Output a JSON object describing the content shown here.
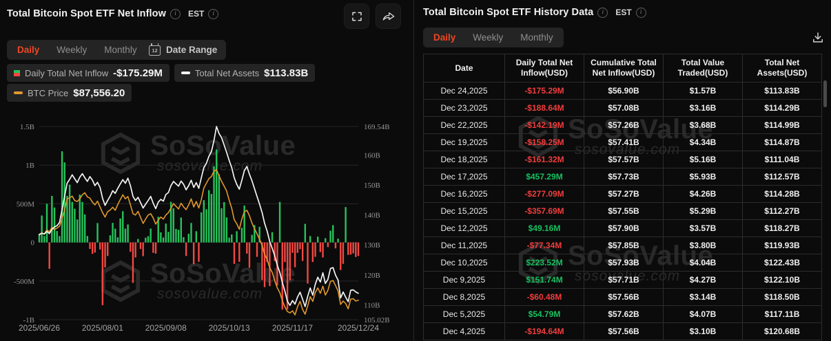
{
  "theme": {
    "background": "#0b0b0b",
    "accent_red": "#ee4623",
    "positive_green": "#17c05f",
    "negative_red": "#f23c3c",
    "bar_green": "#27c35c",
    "bar_red": "#f34842",
    "assets_line": "#f5f5f5",
    "btc_line": "#e3982c",
    "gridline": "#262626",
    "axis_text": "#979797"
  },
  "watermark": {
    "name": "SoSoValue",
    "domain": "sosovalue.com"
  },
  "left_panel": {
    "title": "Total Bitcoin Spot ETF Net Inflow",
    "est_label": "EST",
    "tabs": [
      "Daily",
      "Weekly",
      "Monthly"
    ],
    "active_tab": "Daily",
    "date_range_label": "Date Range",
    "calendar_day": "12",
    "legend": [
      {
        "label": "Daily Total Net Inflow",
        "value": "-$175.29M",
        "icon": "green-red-square"
      },
      {
        "label": "Total Net Assets",
        "value": "$113.83B",
        "icon": "white-dash"
      },
      {
        "label": "BTC Price",
        "value": "$87,556.20",
        "icon": "orange-dash"
      }
    ]
  },
  "chart_data": {
    "type": "combo-bar-line",
    "x_ticks": [
      {
        "label": "2025/06/26",
        "i": 0
      },
      {
        "label": "2025/08/01",
        "i": 25
      },
      {
        "label": "2025/09/08",
        "i": 50
      },
      {
        "label": "2025/10/13",
        "i": 75
      },
      {
        "label": "2025/11/17",
        "i": 100
      },
      {
        "label": "2025/12/24",
        "i": 126
      }
    ],
    "y_axis_left": {
      "unit": "USD",
      "tick_labels": [
        "1.5B",
        "1B",
        "500M",
        "0",
        "-500M",
        "-1B"
      ],
      "tick_values_M": [
        1500,
        1000,
        500,
        0,
        -500,
        -1000
      ],
      "range_M": [
        -1000,
        1500
      ]
    },
    "y_axis_right": {
      "unit": "USD",
      "tick_labels": [
        "169.54B",
        "160B",
        "150B",
        "140B",
        "130B",
        "120B",
        "110B",
        "105.02B"
      ],
      "tick_values_B": [
        169.54,
        160,
        150,
        140,
        130,
        120,
        110,
        105.02
      ],
      "range_B": [
        105.02,
        169.54
      ]
    },
    "series": [
      {
        "name": "Daily Total Net Inflow",
        "type": "bar",
        "unit": "USD_M",
        "values": [
          105,
          348,
          82,
          501,
          -342,
          602,
          452,
          148,
          82,
          1179,
          1035,
          603,
          748,
          524,
          436,
          297,
          619,
          523,
          363,
          83,
          -85,
          -148,
          -131,
          251,
          -91,
          -812,
          -323,
          -175,
          91,
          253,
          178,
          65,
          310,
          404,
          178,
          232,
          -121,
          -523,
          -194,
          45,
          -85,
          -178,
          61,
          81,
          179,
          -135,
          -145,
          332,
          130,
          64,
          244,
          136,
          526,
          442,
          175,
          163,
          322,
          68,
          -175,
          112,
          252,
          -282,
          145,
          -251,
          389,
          547,
          430,
          676,
          627,
          985,
          1202,
          882,
          442,
          521,
          324,
          62,
          103,
          -278,
          145,
          -251,
          189,
          477,
          -145,
          -328,
          98,
          224,
          -187,
          202,
          -488,
          -578,
          -254,
          -566,
          132,
          -240,
          -558,
          524,
          -870,
          -254,
          -867,
          -492,
          -135,
          -322,
          -135,
          -88,
          -240,
          240,
          -532,
          82,
          -254,
          -186,
          75,
          -125,
          -194.64,
          54.79,
          -60.48,
          151.74,
          223.52,
          -77.34,
          49.16,
          -357.69,
          -277.09,
          457.29,
          -161.32,
          -158.25,
          -142.19,
          -188.64,
          -175.29
        ]
      },
      {
        "name": "Total Net Assets",
        "type": "line",
        "unit": "USD_B",
        "values": [
          133.4,
          133.9,
          133.6,
          134.5,
          133.8,
          135.2,
          136.0,
          136.4,
          137.5,
          141.8,
          146.2,
          150.6,
          151.9,
          153.4,
          152.1,
          150.8,
          152.6,
          153.8,
          152.4,
          151.2,
          152.8,
          151.6,
          149.8,
          150.9,
          149.2,
          145.5,
          143.2,
          144.8,
          146.3,
          148.1,
          147.2,
          148.9,
          150.4,
          151.8,
          150.6,
          152.3,
          149.8,
          146.2,
          144.8,
          145.9,
          144.1,
          142.3,
          143.6,
          144.8,
          146.2,
          143.9,
          142.1,
          144.3,
          145.2,
          144.6,
          146.8,
          147.5,
          149.8,
          151.2,
          150.4,
          149.6,
          151.3,
          150.2,
          148.4,
          149.8,
          151.6,
          149.2,
          150.8,
          148.9,
          152.4,
          155.8,
          157.2,
          159.6,
          161.2,
          164.8,
          169.54,
          167.2,
          165.8,
          163.4,
          160.9,
          158.2,
          155.8,
          152.4,
          150.2,
          148.6,
          151.6,
          154.8,
          156.2,
          153.6,
          151.4,
          148.8,
          146.2,
          143.6,
          140.8,
          137.2,
          134.6,
          131.2,
          128.8,
          126.4,
          123.2,
          120.8,
          117.4,
          114.6,
          111.2,
          109.8,
          111.4,
          110.2,
          112.6,
          114.2,
          111.8,
          109.4,
          112.8,
          115.6,
          113.2,
          116.8,
          119.2,
          117.6,
          120.68,
          117.11,
          118.5,
          122.1,
          122.43,
          119.93,
          118.27,
          112.27,
          114.28,
          112.57,
          111.04,
          114.87,
          114.99,
          114.29,
          113.83
        ]
      },
      {
        "name": "BTC Price",
        "type": "line",
        "unit": "USD_k",
        "values": [
          107.1,
          107.5,
          107.2,
          108.4,
          107.8,
          109.2,
          108.5,
          108.9,
          109.5,
          111.8,
          114.2,
          117.6,
          117.9,
          118.4,
          117.1,
          116.8,
          117.6,
          118.8,
          119.4,
          118.2,
          117.8,
          116.6,
          115.8,
          116.9,
          115.2,
          113.5,
          112.2,
          113.8,
          114.3,
          115.1,
          114.2,
          115.9,
          117.4,
          118.8,
          117.6,
          118.3,
          115.8,
          113.2,
          112.8,
          113.9,
          112.1,
          110.3,
          111.6,
          112.8,
          113.2,
          111.9,
          110.1,
          111.3,
          112.2,
          111.6,
          112.8,
          113.5,
          114.8,
          116.2,
          115.4,
          114.6,
          116.3,
          115.2,
          114.4,
          115.8,
          117.6,
          115.2,
          116.8,
          114.9,
          117.4,
          120.8,
          122.2,
          123.6,
          124.2,
          125.8,
          126.2,
          124.4,
          122.8,
          121.4,
          119.9,
          117.2,
          114.8,
          111.4,
          110.2,
          108.6,
          111.6,
          113.8,
          114.2,
          112.6,
          110.4,
          108.8,
          107.2,
          105.6,
          103.8,
          101.2,
          99.6,
          97.2,
          95.8,
          93.4,
          91.2,
          89.8,
          87.4,
          85.6,
          84.2,
          83.8,
          84.4,
          83.2,
          85.6,
          87.2,
          84.8,
          83.4,
          85.8,
          88.6,
          87.2,
          89.8,
          91.2,
          89.6,
          91.7,
          89.1,
          90.5,
          93.1,
          93.4,
          91.9,
          90.3,
          86.3,
          87.3,
          86.6,
          85.0,
          87.9,
          88.0,
          87.3,
          87.56
        ]
      }
    ]
  },
  "right_panel": {
    "title": "Total Bitcoin Spot ETF History Data",
    "est_label": "EST",
    "tabs": [
      "Daily",
      "Weekly",
      "Monthly"
    ],
    "active_tab": "Daily",
    "table": {
      "columns": [
        "Date",
        "Daily Total Net Inflow(USD)",
        "Cumulative Total Net Inflow(USD)",
        "Total Value Traded(USD)",
        "Total Net Assets(USD)"
      ],
      "rows": [
        {
          "date": "Dec 24,2025",
          "inflow": "-$175.29M",
          "cumulative": "$56.90B",
          "traded": "$1.57B",
          "assets": "$113.83B"
        },
        {
          "date": "Dec 23,2025",
          "inflow": "-$188.64M",
          "cumulative": "$57.08B",
          "traded": "$3.16B",
          "assets": "$114.29B"
        },
        {
          "date": "Dec 22,2025",
          "inflow": "-$142.19M",
          "cumulative": "$57.26B",
          "traded": "$3.68B",
          "assets": "$114.99B"
        },
        {
          "date": "Dec 19,2025",
          "inflow": "-$158.25M",
          "cumulative": "$57.41B",
          "traded": "$4.34B",
          "assets": "$114.87B"
        },
        {
          "date": "Dec 18,2025",
          "inflow": "-$161.32M",
          "cumulative": "$57.57B",
          "traded": "$5.16B",
          "assets": "$111.04B"
        },
        {
          "date": "Dec 17,2025",
          "inflow": "$457.29M",
          "cumulative": "$57.73B",
          "traded": "$5.93B",
          "assets": "$112.57B"
        },
        {
          "date": "Dec 16,2025",
          "inflow": "-$277.09M",
          "cumulative": "$57.27B",
          "traded": "$4.26B",
          "assets": "$114.28B"
        },
        {
          "date": "Dec 15,2025",
          "inflow": "-$357.69M",
          "cumulative": "$57.55B",
          "traded": "$5.29B",
          "assets": "$112.27B"
        },
        {
          "date": "Dec 12,2025",
          "inflow": "$49.16M",
          "cumulative": "$57.90B",
          "traded": "$3.57B",
          "assets": "$118.27B"
        },
        {
          "date": "Dec 11,2025",
          "inflow": "-$77.34M",
          "cumulative": "$57.85B",
          "traded": "$3.80B",
          "assets": "$119.93B"
        },
        {
          "date": "Dec 10,2025",
          "inflow": "$223.52M",
          "cumulative": "$57.93B",
          "traded": "$4.04B",
          "assets": "$122.43B"
        },
        {
          "date": "Dec 9,2025",
          "inflow": "$151.74M",
          "cumulative": "$57.71B",
          "traded": "$4.27B",
          "assets": "$122.10B"
        },
        {
          "date": "Dec 8,2025",
          "inflow": "-$60.48M",
          "cumulative": "$57.56B",
          "traded": "$3.14B",
          "assets": "$118.50B"
        },
        {
          "date": "Dec 5,2025",
          "inflow": "$54.79M",
          "cumulative": "$57.62B",
          "traded": "$4.07B",
          "assets": "$117.11B"
        },
        {
          "date": "Dec 4,2025",
          "inflow": "-$194.64M",
          "cumulative": "$57.56B",
          "traded": "$3.10B",
          "assets": "$120.68B"
        }
      ]
    }
  }
}
